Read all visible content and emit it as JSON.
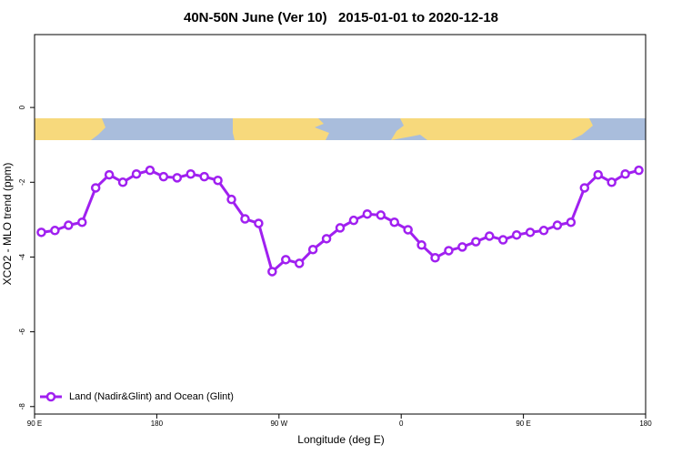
{
  "chart_data": {
    "type": "line",
    "title": "40N-50N June (Ver 10)   2015-01-01 to 2020-12-18",
    "x_label": "Longitude (deg E)",
    "y_label": "XCO2 - MLO trend (ppm)",
    "x": [
      95,
      105,
      115,
      125,
      135,
      145,
      155,
      165,
      175,
      185,
      195,
      205,
      215,
      225,
      235,
      245,
      255,
      265,
      275,
      285,
      295,
      305,
      315,
      325,
      335,
      345,
      355,
      365,
      375,
      385,
      395,
      405,
      415,
      425,
      435,
      445,
      455,
      465,
      475,
      485,
      495,
      505,
      515,
      525,
      535
    ],
    "series": [
      {
        "name": "Land (Nadir&Glint) and Ocean (Glint)",
        "color": "#a020f0",
        "values": [
          -3.34,
          -3.29,
          -3.15,
          -3.07,
          -2.15,
          -1.8,
          -2.0,
          -1.78,
          -1.68,
          -1.85,
          -1.88,
          -1.78,
          -1.85,
          -1.95,
          -2.46,
          -2.98,
          -3.1,
          -4.39,
          -4.07,
          -4.17,
          -3.8,
          -3.51,
          -3.22,
          -3.02,
          -2.85,
          -2.88,
          -3.07,
          -3.27,
          -3.68,
          -4.02,
          -3.83,
          -3.73,
          -3.59,
          -3.44,
          -3.54,
          -3.41,
          -3.34,
          -3.29,
          -3.15,
          -3.07,
          -2.15,
          -1.8,
          -2.0,
          -1.78,
          -1.68
        ]
      }
    ],
    "xlim": [
      90,
      540
    ],
    "xticks": [
      {
        "value": 90,
        "label": "90 E"
      },
      180,
      {
        "value": 270,
        "label": "90 W"
      },
      {
        "value": 360,
        "label": "0"
      },
      {
        "value": 450,
        "label": "90 E"
      },
      {
        "value": 540,
        "label": "180"
      }
    ],
    "ylim": [
      -8.2,
      1.95
    ],
    "yticks": [
      0,
      -2,
      -4,
      -6,
      -8
    ],
    "legend": "bottom-left"
  }
}
